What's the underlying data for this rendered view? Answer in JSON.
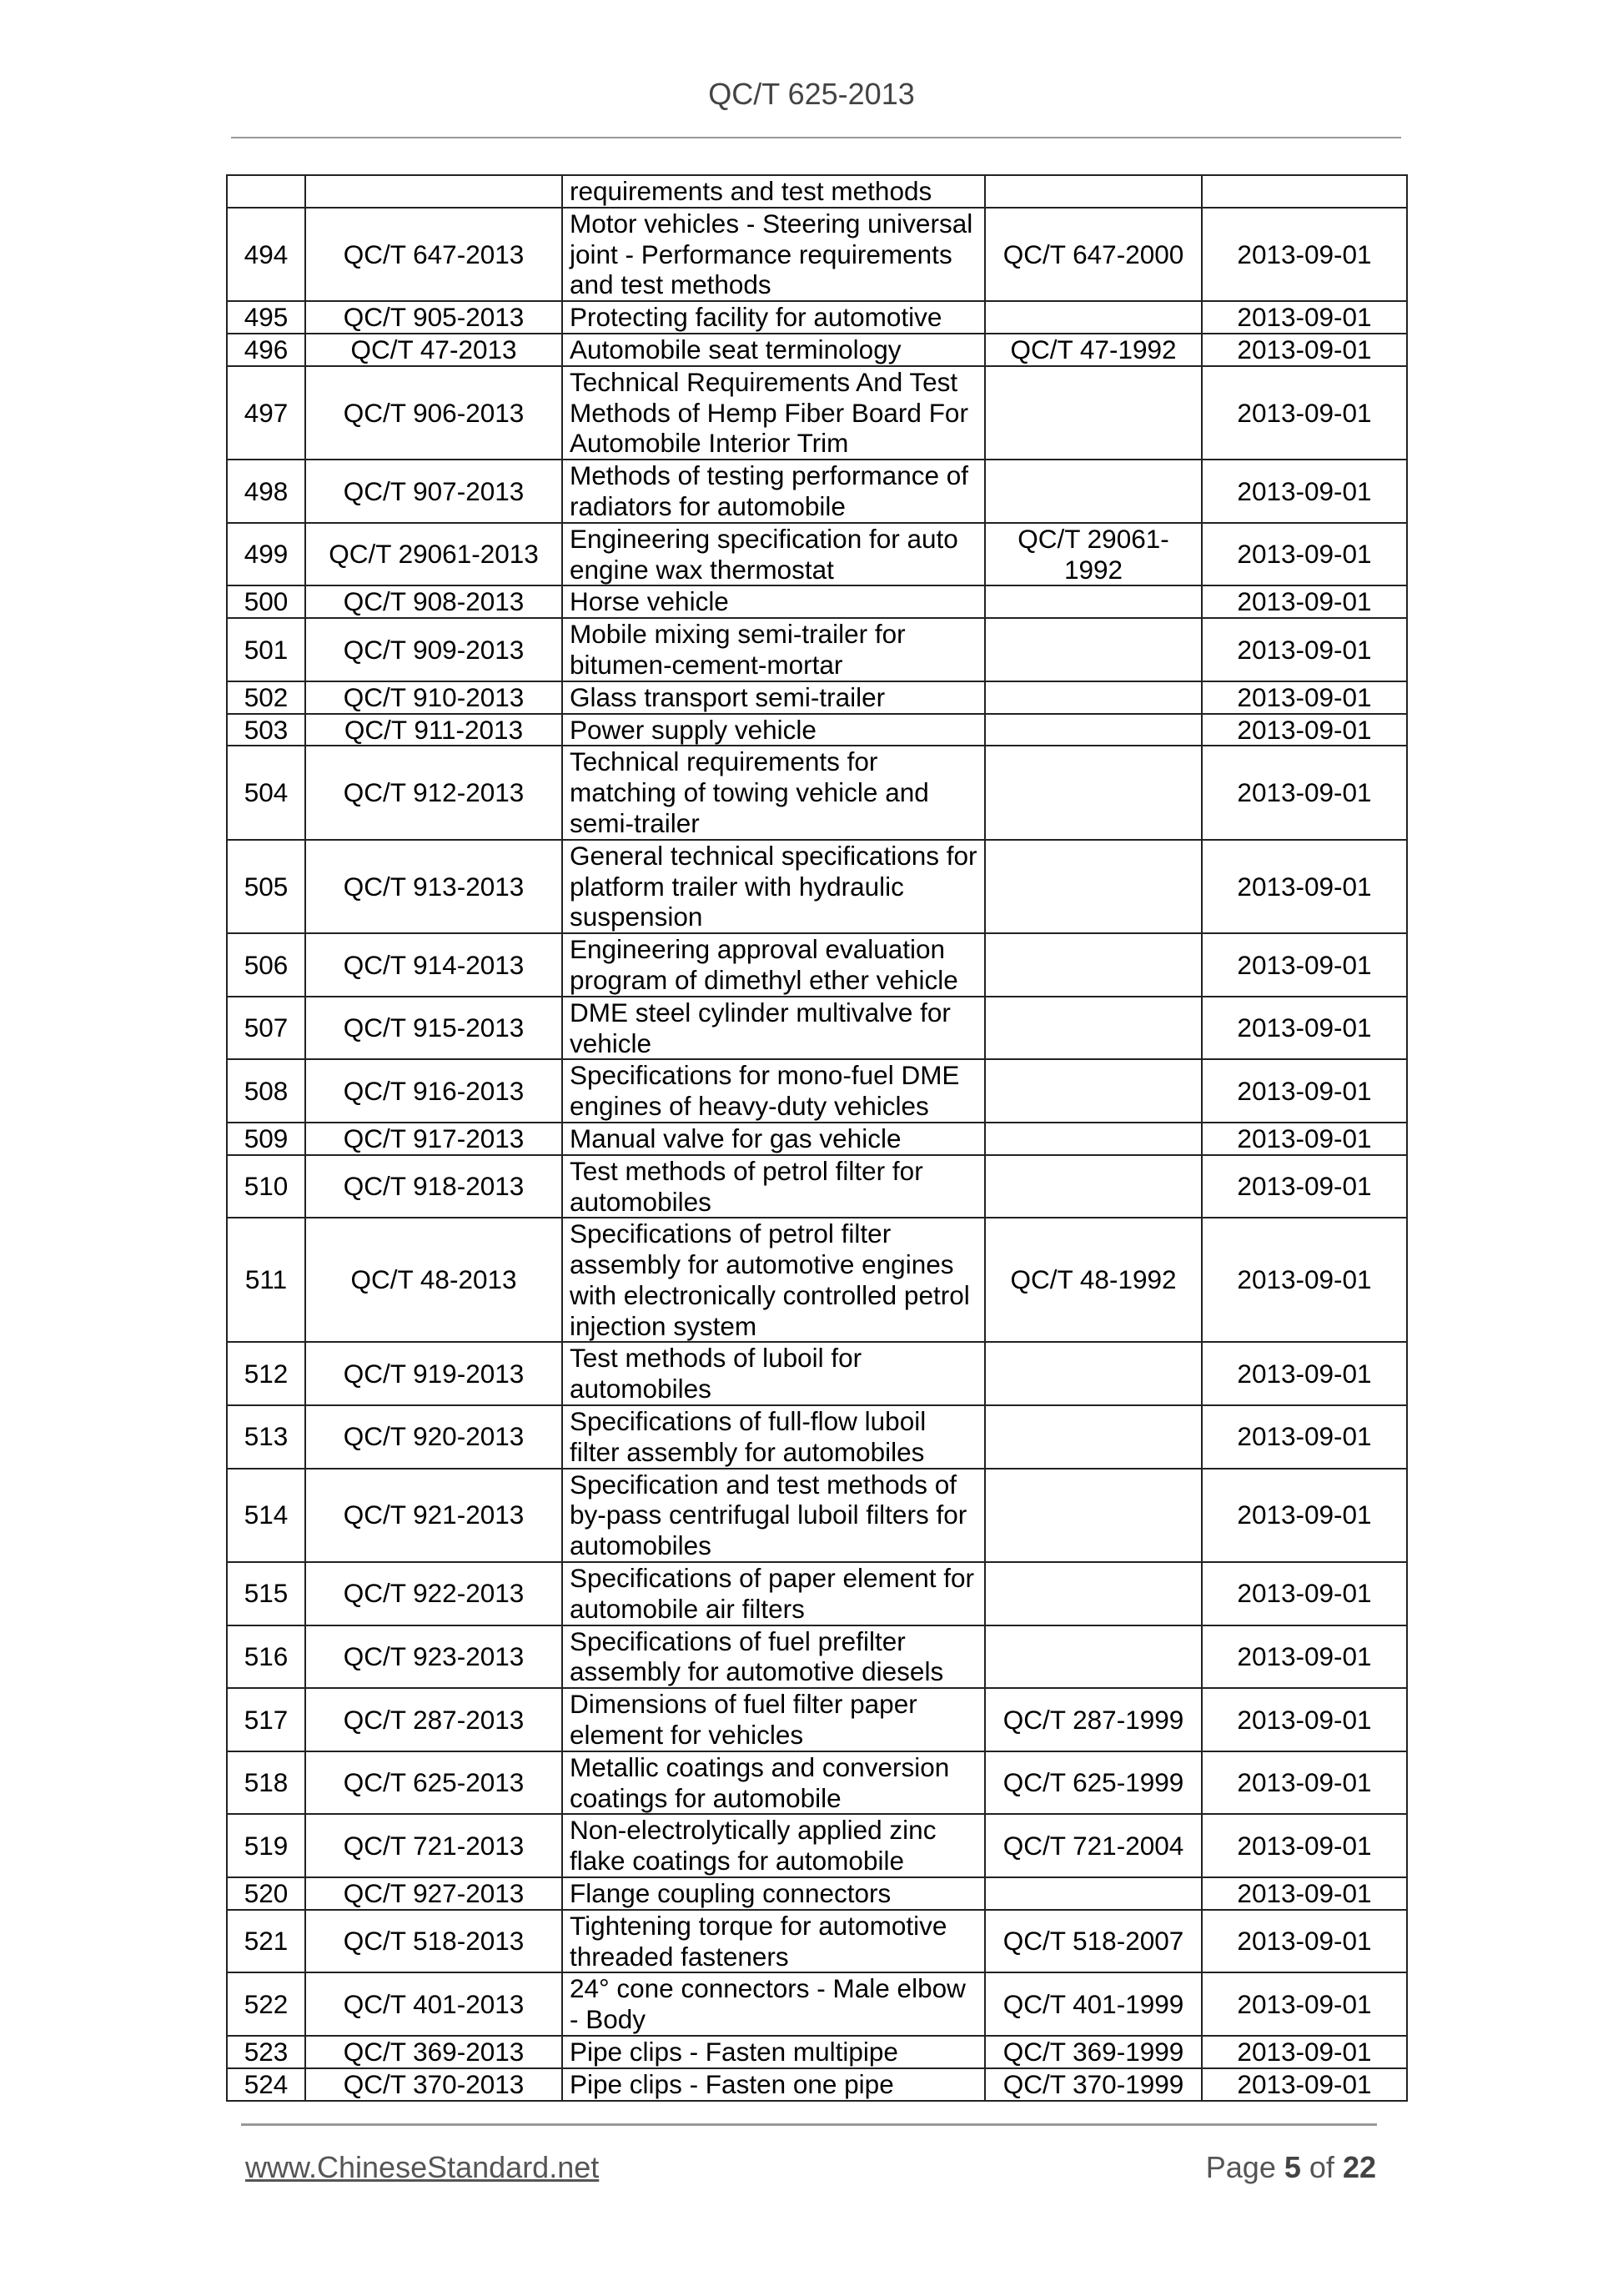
{
  "header": {
    "title": "QC/T 625-2013"
  },
  "table": {
    "rows": [
      [
        "",
        "",
        "requirements and test methods",
        "",
        ""
      ],
      [
        "494",
        "QC/T 647-2013",
        "Motor vehicles - Steering universal joint - Performance requirements and test methods",
        "QC/T 647-2000",
        "2013-09-01"
      ],
      [
        "495",
        "QC/T 905-2013",
        "Protecting facility for automotive",
        "",
        "2013-09-01"
      ],
      [
        "496",
        "QC/T 47-2013",
        "Automobile seat terminology",
        "QC/T 47-1992",
        "2013-09-01"
      ],
      [
        "497",
        "QC/T 906-2013",
        "Technical Requirements And Test Methods of Hemp Fiber Board For Automobile Interior Trim",
        "",
        "2013-09-01"
      ],
      [
        "498",
        "QC/T 907-2013",
        "Methods of testing performance of radiators for automobile",
        "",
        "2013-09-01"
      ],
      [
        "499",
        "QC/T 29061-2013",
        "Engineering specification for auto engine wax thermostat",
        "QC/T 29061-1992",
        "2013-09-01"
      ],
      [
        "500",
        "QC/T 908-2013",
        "Horse vehicle",
        "",
        "2013-09-01"
      ],
      [
        "501",
        "QC/T 909-2013",
        "Mobile mixing semi-trailer for bitumen-cement-mortar",
        "",
        "2013-09-01"
      ],
      [
        "502",
        "QC/T 910-2013",
        "Glass transport semi-trailer",
        "",
        "2013-09-01"
      ],
      [
        "503",
        "QC/T 911-2013",
        "Power supply vehicle",
        "",
        "2013-09-01"
      ],
      [
        "504",
        "QC/T 912-2013",
        "Technical requirements for matching of towing vehicle and semi-trailer",
        "",
        "2013-09-01"
      ],
      [
        "505",
        "QC/T 913-2013",
        "General technical specifications for platform trailer with hydraulic suspension",
        "",
        "2013-09-01"
      ],
      [
        "506",
        "QC/T 914-2013",
        "Engineering approval evaluation program of dimethyl ether vehicle",
        "",
        "2013-09-01"
      ],
      [
        "507",
        "QC/T 915-2013",
        "DME steel cylinder multivalve for vehicle",
        "",
        "2013-09-01"
      ],
      [
        "508",
        "QC/T 916-2013",
        "Specifications for mono-fuel DME engines of heavy-duty vehicles",
        "",
        "2013-09-01"
      ],
      [
        "509",
        "QC/T 917-2013",
        "Manual valve for gas vehicle",
        "",
        "2013-09-01"
      ],
      [
        "510",
        "QC/T 918-2013",
        "Test methods of petrol filter for automobiles",
        "",
        "2013-09-01"
      ],
      [
        "511",
        "QC/T 48-2013",
        "Specifications of petrol filter assembly for automotive engines with electronically controlled petrol injection system",
        "QC/T 48-1992",
        "2013-09-01"
      ],
      [
        "512",
        "QC/T 919-2013",
        "Test methods of luboil for automobiles",
        "",
        "2013-09-01"
      ],
      [
        "513",
        "QC/T 920-2013",
        "Specifications of full-flow luboil filter assembly for automobiles",
        "",
        "2013-09-01"
      ],
      [
        "514",
        "QC/T 921-2013",
        "Specification and test methods of by-pass centrifugal luboil filters for automobiles",
        "",
        "2013-09-01"
      ],
      [
        "515",
        "QC/T 922-2013",
        "Specifications of paper element for automobile air filters",
        "",
        "2013-09-01"
      ],
      [
        "516",
        "QC/T 923-2013",
        "Specifications of fuel prefilter assembly for automotive diesels",
        "",
        "2013-09-01"
      ],
      [
        "517",
        "QC/T 287-2013",
        "Dimensions of fuel filter paper element for vehicles",
        "QC/T 287-1999",
        "2013-09-01"
      ],
      [
        "518",
        "QC/T 625-2013",
        "Metallic coatings and conversion coatings for automobile",
        "QC/T 625-1999",
        "2013-09-01"
      ],
      [
        "519",
        "QC/T 721-2013",
        "Non-electrolytically applied zinc flake coatings for automobile",
        "QC/T 721-2004",
        "2013-09-01"
      ],
      [
        "520",
        "QC/T 927-2013",
        "Flange coupling connectors",
        "",
        "2013-09-01"
      ],
      [
        "521",
        "QC/T 518-2013",
        "Tightening torque for automotive threaded fasteners",
        "QC/T 518-2007",
        "2013-09-01"
      ],
      [
        "522",
        "QC/T 401-2013",
        "24° cone connectors - Male elbow - Body",
        "QC/T 401-1999",
        "2013-09-01"
      ],
      [
        "523",
        "QC/T 369-2013",
        "Pipe clips - Fasten multipipe",
        "QC/T 369-1999",
        "2013-09-01"
      ],
      [
        "524",
        "QC/T 370-2013",
        "Pipe clips - Fasten one pipe",
        "QC/T 370-1999",
        "2013-09-01"
      ]
    ]
  },
  "footer": {
    "site": "www.ChineseStandard.net",
    "page_prefix": "Page",
    "page": "5",
    "of": "of",
    "total": "22"
  }
}
